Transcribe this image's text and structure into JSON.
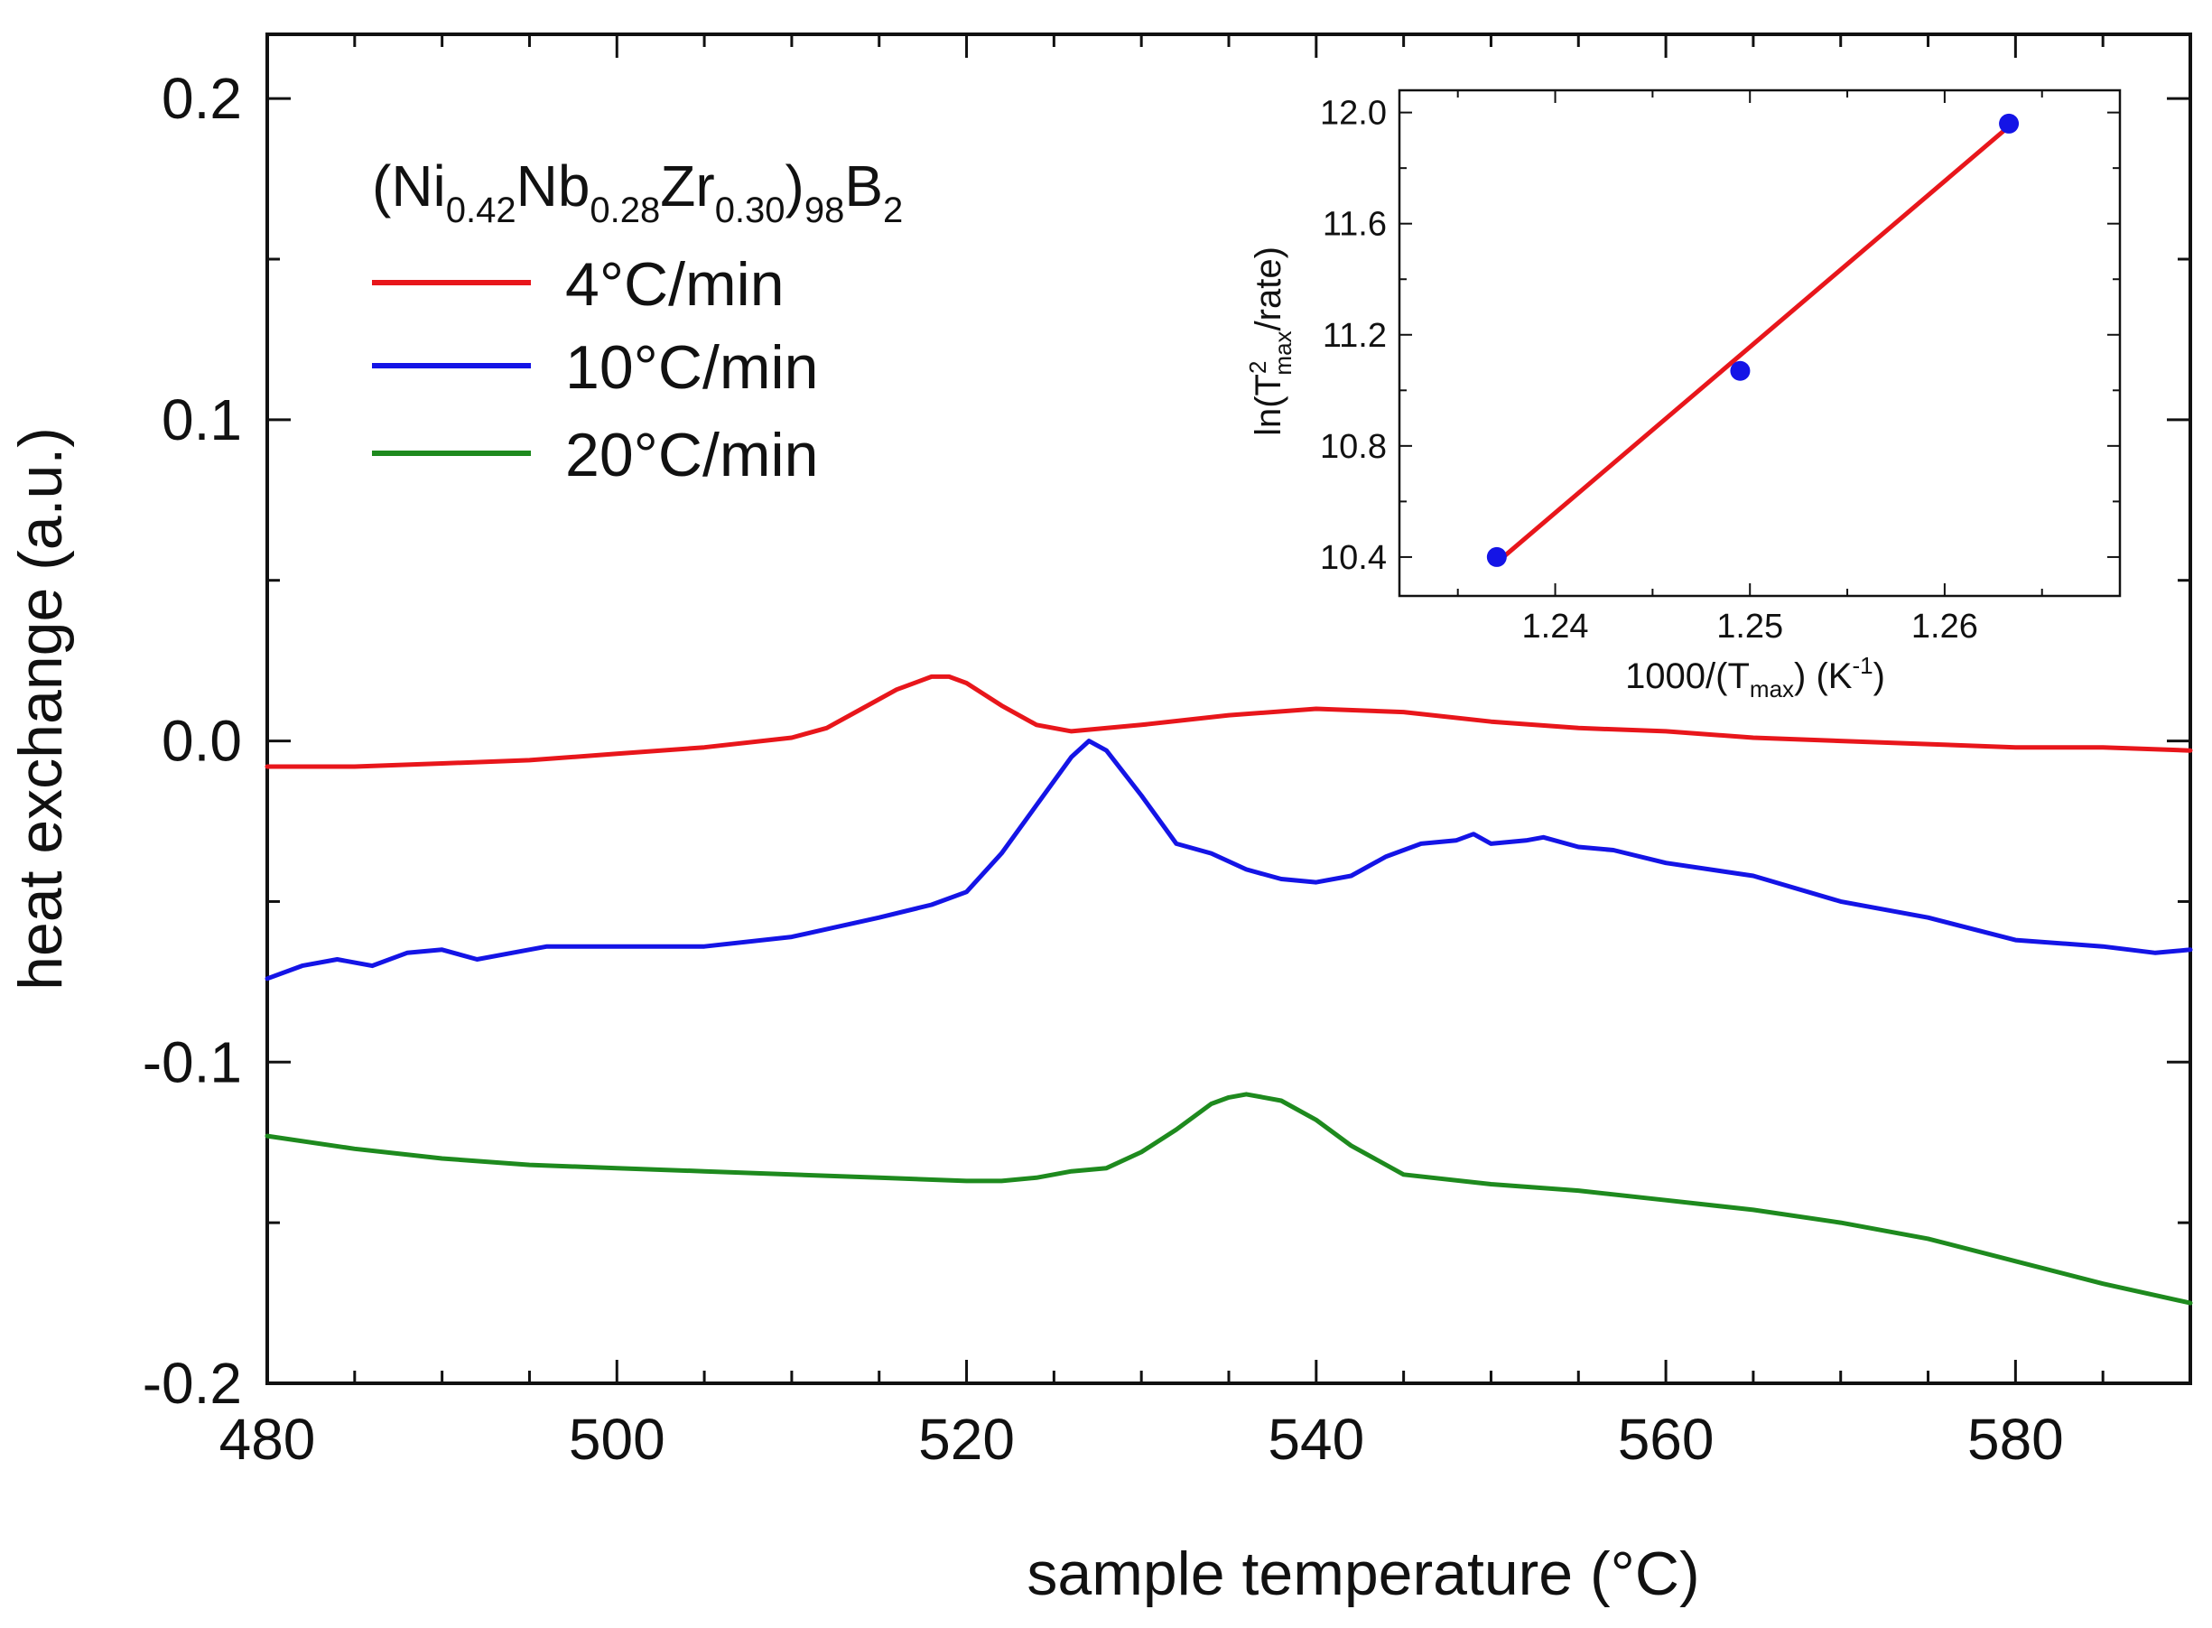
{
  "chart_data": [
    {
      "type": "line",
      "title": "",
      "xlabel": "sample temperature (°C)",
      "ylabel": "heat exchange (a.u.)",
      "xlim": [
        480,
        590
      ],
      "ylim": [
        -0.2,
        0.22
      ],
      "xticks": [
        480,
        500,
        520,
        540,
        560,
        580
      ],
      "xtick_labels": [
        "480",
        "500",
        "520",
        "540",
        "560",
        "580"
      ],
      "yticks": [
        -0.2,
        -0.1,
        0.0,
        0.1,
        0.2
      ],
      "ytick_labels": [
        "-0.2",
        "-0.1",
        "0.0",
        "0.1",
        "0.2"
      ],
      "grid": false,
      "legend": {
        "placement": "top-left",
        "title": {
          "base": "(Ni",
          "s1": "0.42",
          "t1": "Nb",
          "s2": "0.28",
          "t2": "Zr",
          "s3": "0.30",
          "t3": ")",
          "s4": "98",
          "t4": "B",
          "s5": "2"
        }
      },
      "series": [
        {
          "name": "4°C/min",
          "color": "#e8161b",
          "x": [
            480,
            485,
            490,
            495,
            500,
            505,
            510,
            512,
            514,
            516,
            518,
            519,
            520,
            522,
            524,
            526,
            530,
            535,
            540,
            545,
            550,
            555,
            560,
            565,
            570,
            575,
            580,
            585,
            590
          ],
          "y": [
            -0.008,
            -0.008,
            -0.007,
            -0.006,
            -0.004,
            -0.002,
            0.001,
            0.004,
            0.01,
            0.016,
            0.02,
            0.02,
            0.018,
            0.011,
            0.005,
            0.003,
            0.005,
            0.008,
            0.01,
            0.009,
            0.006,
            0.004,
            0.003,
            0.001,
            0.0,
            -0.001,
            -0.002,
            -0.002,
            -0.003
          ]
        },
        {
          "name": "10°C/min",
          "color": "#1414e6",
          "x": [
            480,
            482,
            484,
            486,
            488,
            490,
            492,
            494,
            496,
            500,
            505,
            510,
            515,
            518,
            520,
            522,
            524,
            526,
            527,
            528,
            530,
            532,
            534,
            536,
            538,
            540,
            542,
            544,
            546,
            548,
            549,
            550,
            552,
            553,
            555,
            557,
            560,
            565,
            570,
            575,
            580,
            585,
            588,
            590
          ],
          "y": [
            -0.074,
            -0.07,
            -0.068,
            -0.07,
            -0.066,
            -0.065,
            -0.068,
            -0.066,
            -0.064,
            -0.064,
            -0.064,
            -0.061,
            -0.055,
            -0.051,
            -0.047,
            -0.035,
            -0.02,
            -0.005,
            0.0,
            -0.003,
            -0.017,
            -0.032,
            -0.035,
            -0.04,
            -0.043,
            -0.044,
            -0.042,
            -0.036,
            -0.032,
            -0.031,
            -0.029,
            -0.032,
            -0.031,
            -0.03,
            -0.033,
            -0.034,
            -0.038,
            -0.042,
            -0.05,
            -0.055,
            -0.062,
            -0.064,
            -0.066,
            -0.065
          ]
        },
        {
          "name": "20°C/min",
          "color": "#1e8a1e",
          "x": [
            480,
            485,
            490,
            495,
            500,
            505,
            510,
            515,
            520,
            522,
            524,
            526,
            528,
            530,
            532,
            534,
            535,
            536,
            537,
            538,
            540,
            542,
            545,
            550,
            555,
            560,
            565,
            570,
            575,
            580,
            585,
            590
          ],
          "y": [
            -0.123,
            -0.127,
            -0.13,
            -0.132,
            -0.133,
            -0.134,
            -0.135,
            -0.136,
            -0.137,
            -0.137,
            -0.136,
            -0.134,
            -0.133,
            -0.128,
            -0.121,
            -0.113,
            -0.111,
            -0.11,
            -0.111,
            -0.112,
            -0.118,
            -0.126,
            -0.135,
            -0.138,
            -0.14,
            -0.143,
            -0.146,
            -0.15,
            -0.155,
            -0.162,
            -0.169,
            -0.175
          ]
        }
      ]
    },
    {
      "type": "scatter",
      "title": "",
      "xlabel": {
        "main": "1000/(T",
        "sub": "max",
        "close": ") (K",
        "sup": "-1",
        "end": ")"
      },
      "ylabel": {
        "main": "ln(T",
        "sup": "2",
        "sub": "max",
        "end": "/rate)"
      },
      "xlim": [
        1.232,
        1.269
      ],
      "ylim": [
        10.26,
        12.08
      ],
      "xticks": [
        1.24,
        1.25,
        1.26
      ],
      "xtick_labels": [
        "1.24",
        "1.25",
        "1.26"
      ],
      "yticks": [
        10.4,
        10.8,
        11.2,
        11.6,
        12.0
      ],
      "ytick_labels": [
        "10.4",
        "10.8",
        "11.2",
        "11.6",
        "12.0"
      ],
      "grid": false,
      "points": {
        "color": "#1414e6",
        "x": [
          1.237,
          1.2495,
          1.2633
        ],
        "y": [
          10.4,
          11.07,
          11.96
        ]
      },
      "fit": {
        "color": "#e8161b",
        "x": [
          1.237,
          1.2633
        ],
        "y": [
          10.38,
          11.95
        ]
      }
    }
  ]
}
